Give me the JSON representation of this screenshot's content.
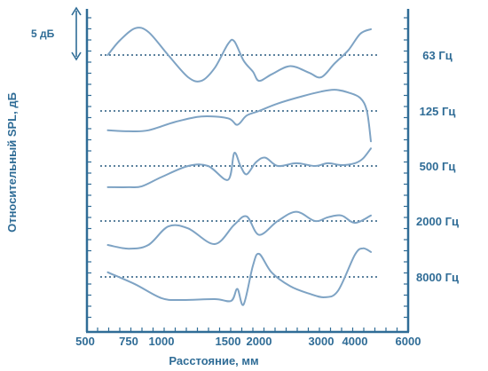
{
  "colors": {
    "axis": "#2f6c96",
    "curve": "#7ea3c4",
    "reference": "#26587f"
  },
  "chart_data": {
    "type": "line",
    "title": "",
    "xlabel": "Расстояние, мм",
    "ylabel": "Относительный SPL, дБ",
    "scale_label": "5 дБ",
    "x_ticks": [
      "500",
      "750",
      "1000",
      "1500",
      "2000",
      "3000",
      "4000",
      "6000"
    ],
    "x_range": [
      500,
      6000
    ],
    "series": [
      {
        "name": "63 Гц",
        "x": [
          630,
          700,
          800,
          900,
          1050,
          1200,
          1300,
          1400,
          1500,
          1600,
          1750,
          1900,
          2000,
          2200,
          2500,
          2800,
          3000,
          3400,
          3800,
          4200,
          4600
        ],
        "y": [
          0,
          1.6,
          2.9,
          2.5,
          0,
          -2.4,
          -2.8,
          -1.4,
          1.2,
          1.5,
          -0.6,
          -1.8,
          -2.8,
          -2.1,
          -1.2,
          -1.9,
          -2.4,
          -0.9,
          0.5,
          2.3,
          2.8
        ]
      },
      {
        "name": "125 Гц",
        "x": [
          630,
          750,
          900,
          1100,
          1300,
          1500,
          1650,
          1800,
          2000,
          2300,
          2700,
          3000,
          3400,
          3800,
          4200,
          4450,
          4600
        ],
        "y": [
          -2.1,
          -2.2,
          -2.1,
          -1.2,
          -0.6,
          -0.8,
          -1.5,
          -0.5,
          0,
          0.8,
          1.6,
          2.1,
          2.3,
          2.0,
          1.4,
          0,
          -3.3
        ]
      },
      {
        "name": "500 Гц",
        "x": [
          630,
          750,
          850,
          1000,
          1200,
          1350,
          1500,
          1600,
          1700,
          1800,
          1950,
          2100,
          2300,
          2600,
          2900,
          3200,
          3600,
          4000,
          4300,
          4600
        ],
        "y": [
          -2.3,
          -2.3,
          -2.2,
          -1.2,
          0,
          0,
          -1.5,
          1.4,
          0,
          -0.9,
          0.4,
          0.9,
          0,
          0.3,
          0,
          0.3,
          0.1,
          0.3,
          0.8,
          1.9
        ]
      },
      {
        "name": "2000 Гц",
        "x": [
          630,
          750,
          900,
          1050,
          1200,
          1400,
          1600,
          1800,
          2000,
          2300,
          2600,
          2900,
          3200,
          3600,
          4000,
          4600
        ],
        "y": [
          -2.6,
          -3.0,
          -2.6,
          -0.6,
          -0.8,
          -2.5,
          -0.4,
          0.5,
          -1.5,
          0,
          1.0,
          0,
          0.4,
          0.6,
          -0.2,
          0.6
        ]
      },
      {
        "name": "8000 Гц",
        "x": [
          630,
          800,
          1000,
          1150,
          1400,
          1550,
          1650,
          1750,
          1900,
          2000,
          2200,
          2500,
          2800,
          3100,
          3500,
          4000,
          4300,
          4600
        ],
        "y": [
          0.5,
          -0.8,
          -2.3,
          -2.5,
          -2.4,
          -2.6,
          -1.3,
          -3.0,
          1.2,
          2.5,
          0.5,
          -1.0,
          -1.8,
          -2.2,
          -1.5,
          2.4,
          3.1,
          2.7
        ]
      }
    ]
  }
}
